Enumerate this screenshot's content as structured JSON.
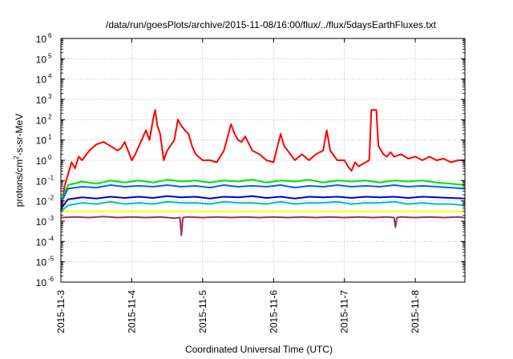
{
  "chart_data": {
    "type": "line",
    "title": "/data/run/goesPlots/archive/2015-11-08/16:00/flux/../flux/5daysEarthFluxes.txt",
    "xlabel": "Coordinated Universal Time (UTC)",
    "ylabel": {
      "base": "protons/cm",
      "sup": "2",
      "rest": "-s-sr-MeV"
    },
    "y_scale": "log",
    "ylim_exponents": [
      -6,
      6
    ],
    "ytick_exponents": [
      -6,
      -5,
      -4,
      -3,
      -2,
      -1,
      0,
      1,
      2,
      3,
      4,
      5,
      6
    ],
    "xlim_days": [
      0,
      5.7
    ],
    "xtick_labels": [
      "2015-11-3",
      "2015-11-4",
      "2015-11-5",
      "2015-11-6",
      "2015-11-7",
      "2015-11-8"
    ],
    "grid": true,
    "legend": "none",
    "series": [
      {
        "color": "#ff0000",
        "points": [
          [
            0,
            0.003
          ],
          [
            0.05,
            0.05
          ],
          [
            0.1,
            0.2
          ],
          [
            0.15,
            0.8
          ],
          [
            0.2,
            0.4
          ],
          [
            0.25,
            1.5
          ],
          [
            0.3,
            1.0
          ],
          [
            0.4,
            3
          ],
          [
            0.5,
            6
          ],
          [
            0.6,
            8
          ],
          [
            0.7,
            5
          ],
          [
            0.8,
            3
          ],
          [
            0.85,
            4
          ],
          [
            0.9,
            8
          ],
          [
            1.0,
            1
          ],
          [
            1.05,
            2
          ],
          [
            1.1,
            5
          ],
          [
            1.2,
            30
          ],
          [
            1.25,
            10
          ],
          [
            1.3,
            100
          ],
          [
            1.33,
            300
          ],
          [
            1.36,
            50
          ],
          [
            1.4,
            20
          ],
          [
            1.45,
            1
          ],
          [
            1.5,
            3
          ],
          [
            1.6,
            10
          ],
          [
            1.65,
            100
          ],
          [
            1.7,
            50
          ],
          [
            1.75,
            30
          ],
          [
            1.8,
            20
          ],
          [
            1.85,
            5
          ],
          [
            1.9,
            2
          ],
          [
            2.0,
            1
          ],
          [
            2.1,
            1
          ],
          [
            2.2,
            0.8
          ],
          [
            2.3,
            3
          ],
          [
            2.4,
            60
          ],
          [
            2.45,
            20
          ],
          [
            2.5,
            10
          ],
          [
            2.55,
            8
          ],
          [
            2.6,
            15
          ],
          [
            2.7,
            3
          ],
          [
            2.8,
            2
          ],
          [
            2.9,
            1
          ],
          [
            3.0,
            0.8
          ],
          [
            3.1,
            20
          ],
          [
            3.15,
            5
          ],
          [
            3.2,
            3
          ],
          [
            3.3,
            1
          ],
          [
            3.4,
            2
          ],
          [
            3.5,
            1
          ],
          [
            3.6,
            2
          ],
          [
            3.7,
            3
          ],
          [
            3.75,
            30
          ],
          [
            3.8,
            3
          ],
          [
            3.9,
            1
          ],
          [
            3.95,
            1
          ],
          [
            4.0,
            1
          ],
          [
            4.05,
            0.5
          ],
          [
            4.1,
            0.3
          ],
          [
            4.15,
            0.8
          ],
          [
            4.2,
            0.5
          ],
          [
            4.3,
            0.8
          ],
          [
            4.35,
            1
          ],
          [
            4.38,
            300
          ],
          [
            4.45,
            300
          ],
          [
            4.48,
            5
          ],
          [
            4.55,
            2
          ],
          [
            4.6,
            1.5
          ],
          [
            4.65,
            2.5
          ],
          [
            4.7,
            1.5
          ],
          [
            4.8,
            2
          ],
          [
            4.9,
            1.2
          ],
          [
            5.0,
            1.5
          ],
          [
            5.1,
            1
          ],
          [
            5.2,
            1.5
          ],
          [
            5.3,
            1
          ],
          [
            5.4,
            1.2
          ],
          [
            5.5,
            0.8
          ],
          [
            5.6,
            1
          ],
          [
            5.7,
            1
          ]
        ]
      },
      {
        "color": "#00e000",
        "points": [
          [
            0,
            0.01
          ],
          [
            0.1,
            0.06
          ],
          [
            0.3,
            0.09
          ],
          [
            0.5,
            0.07
          ],
          [
            0.7,
            0.1
          ],
          [
            0.9,
            0.08
          ],
          [
            1.1,
            0.1
          ],
          [
            1.3,
            0.08
          ],
          [
            1.5,
            0.11
          ],
          [
            1.7,
            0.09
          ],
          [
            1.9,
            0.1
          ],
          [
            2.1,
            0.08
          ],
          [
            2.3,
            0.1
          ],
          [
            2.5,
            0.09
          ],
          [
            2.7,
            0.11
          ],
          [
            2.9,
            0.08
          ],
          [
            3.1,
            0.1
          ],
          [
            3.3,
            0.09
          ],
          [
            3.5,
            0.11
          ],
          [
            3.7,
            0.08
          ],
          [
            3.9,
            0.1
          ],
          [
            4.1,
            0.09
          ],
          [
            4.3,
            0.1
          ],
          [
            4.5,
            0.08
          ],
          [
            4.7,
            0.1
          ],
          [
            4.9,
            0.09
          ],
          [
            5.1,
            0.1
          ],
          [
            5.3,
            0.08
          ],
          [
            5.5,
            0.07
          ],
          [
            5.7,
            0.06
          ]
        ]
      },
      {
        "color": "#0060ff",
        "points": [
          [
            0,
            0.008
          ],
          [
            0.1,
            0.04
          ],
          [
            0.3,
            0.05
          ],
          [
            0.5,
            0.045
          ],
          [
            0.7,
            0.06
          ],
          [
            0.9,
            0.05
          ],
          [
            1.1,
            0.055
          ],
          [
            1.3,
            0.05
          ],
          [
            1.5,
            0.06
          ],
          [
            1.7,
            0.05
          ],
          [
            1.9,
            0.055
          ],
          [
            2.1,
            0.045
          ],
          [
            2.3,
            0.06
          ],
          [
            2.5,
            0.05
          ],
          [
            2.7,
            0.055
          ],
          [
            2.9,
            0.05
          ],
          [
            3.1,
            0.06
          ],
          [
            3.3,
            0.045
          ],
          [
            3.5,
            0.055
          ],
          [
            3.7,
            0.05
          ],
          [
            3.9,
            0.06
          ],
          [
            4.1,
            0.05
          ],
          [
            4.3,
            0.055
          ],
          [
            4.5,
            0.05
          ],
          [
            4.7,
            0.06
          ],
          [
            4.9,
            0.05
          ],
          [
            5.1,
            0.055
          ],
          [
            5.3,
            0.05
          ],
          [
            5.5,
            0.045
          ],
          [
            5.7,
            0.04
          ]
        ]
      },
      {
        "color": "#0000cc",
        "points": [
          [
            0,
            0.004
          ],
          [
            0.1,
            0.012
          ],
          [
            0.3,
            0.015
          ],
          [
            0.5,
            0.013
          ],
          [
            0.7,
            0.016
          ],
          [
            0.9,
            0.014
          ],
          [
            1.1,
            0.016
          ],
          [
            1.3,
            0.014
          ],
          [
            1.5,
            0.017
          ],
          [
            1.7,
            0.015
          ],
          [
            1.9,
            0.016
          ],
          [
            2.1,
            0.013
          ],
          [
            2.3,
            0.016
          ],
          [
            2.5,
            0.015
          ],
          [
            2.7,
            0.017
          ],
          [
            2.9,
            0.014
          ],
          [
            3.1,
            0.016
          ],
          [
            3.3,
            0.013
          ],
          [
            3.5,
            0.016
          ],
          [
            3.7,
            0.015
          ],
          [
            3.9,
            0.016
          ],
          [
            4.1,
            0.014
          ],
          [
            4.3,
            0.016
          ],
          [
            4.5,
            0.015
          ],
          [
            4.7,
            0.016
          ],
          [
            4.9,
            0.014
          ],
          [
            5.1,
            0.016
          ],
          [
            5.3,
            0.015
          ],
          [
            5.5,
            0.014
          ],
          [
            5.7,
            0.013
          ]
        ]
      },
      {
        "color": "#00c0c0",
        "points": [
          [
            0,
            0.003
          ],
          [
            0.1,
            0.006
          ],
          [
            0.3,
            0.008
          ],
          [
            0.5,
            0.007
          ],
          [
            0.7,
            0.009
          ],
          [
            0.9,
            0.007
          ],
          [
            1.1,
            0.008
          ],
          [
            1.3,
            0.007
          ],
          [
            1.5,
            0.009
          ],
          [
            1.7,
            0.008
          ],
          [
            1.9,
            0.008
          ],
          [
            2.1,
            0.007
          ],
          [
            2.3,
            0.009
          ],
          [
            2.5,
            0.008
          ],
          [
            2.7,
            0.008
          ],
          [
            2.9,
            0.007
          ],
          [
            3.1,
            0.009
          ],
          [
            3.3,
            0.007
          ],
          [
            3.5,
            0.008
          ],
          [
            3.7,
            0.008
          ],
          [
            3.9,
            0.009
          ],
          [
            4.1,
            0.007
          ],
          [
            4.3,
            0.008
          ],
          [
            4.5,
            0.008
          ],
          [
            4.7,
            0.009
          ],
          [
            4.9,
            0.007
          ],
          [
            5.1,
            0.008
          ],
          [
            5.3,
            0.007
          ],
          [
            5.5,
            0.007
          ],
          [
            5.7,
            0.006
          ]
        ]
      },
      {
        "color": "#ffff00",
        "points": [
          [
            0,
            0.003
          ],
          [
            0.5,
            0.003
          ],
          [
            1.0,
            0.003
          ],
          [
            1.5,
            0.003
          ],
          [
            2.0,
            0.003
          ],
          [
            2.5,
            0.003
          ],
          [
            3.0,
            0.003
          ],
          [
            3.5,
            0.003
          ],
          [
            4.0,
            0.003
          ],
          [
            4.5,
            0.003
          ],
          [
            5.0,
            0.003
          ],
          [
            5.5,
            0.003
          ],
          [
            5.7,
            0.003
          ]
        ]
      },
      {
        "color": "#993366",
        "points": [
          [
            0,
            0.0015
          ],
          [
            0.2,
            0.0016
          ],
          [
            0.4,
            0.0015
          ],
          [
            0.6,
            0.0017
          ],
          [
            0.8,
            0.0015
          ],
          [
            1.0,
            0.0016
          ],
          [
            1.2,
            0.0015
          ],
          [
            1.4,
            0.0016
          ],
          [
            1.6,
            0.0014
          ],
          [
            1.68,
            0.0015
          ],
          [
            1.7,
            0.0002
          ],
          [
            1.72,
            0.0015
          ],
          [
            1.8,
            0.0016
          ],
          [
            2.0,
            0.0015
          ],
          [
            2.2,
            0.0016
          ],
          [
            2.4,
            0.0015
          ],
          [
            2.6,
            0.0016
          ],
          [
            2.8,
            0.0015
          ],
          [
            3.0,
            0.0016
          ],
          [
            3.2,
            0.0015
          ],
          [
            3.4,
            0.0016
          ],
          [
            3.6,
            0.0015
          ],
          [
            3.8,
            0.0016
          ],
          [
            4.0,
            0.0015
          ],
          [
            4.2,
            0.0016
          ],
          [
            4.4,
            0.0015
          ],
          [
            4.6,
            0.0016
          ],
          [
            4.7,
            0.0015
          ],
          [
            4.72,
            0.0005
          ],
          [
            4.74,
            0.0015
          ],
          [
            4.8,
            0.0016
          ],
          [
            5.0,
            0.0015
          ],
          [
            5.2,
            0.0016
          ],
          [
            5.4,
            0.0015
          ],
          [
            5.6,
            0.0016
          ],
          [
            5.7,
            0.0015
          ]
        ]
      }
    ]
  }
}
